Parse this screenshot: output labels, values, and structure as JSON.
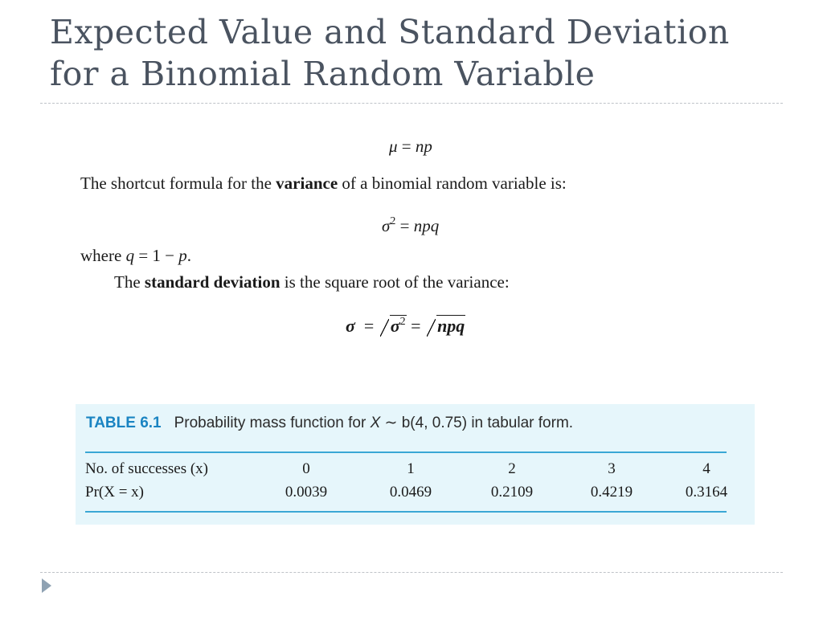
{
  "slide": {
    "title_line1": "Expected Value and Standard Deviation",
    "title_line2": "for a Binomial Random Variable"
  },
  "formulas": {
    "mean_lhs": "μ",
    "mean_eq": " = ",
    "mean_rhs": "np",
    "variance_sym": "σ",
    "variance_exp": "2",
    "variance_eq": " = ",
    "variance_rhs": "npq",
    "sd_lhs": "σ",
    "sd_eq1": "  = ",
    "sd_inner": "σ",
    "sd_inner_exp": "2",
    "sd_eq2": " = ",
    "sd_rhs": "npq"
  },
  "text": {
    "variance_intro_pre": "The shortcut formula for the ",
    "variance_intro_bold": "variance",
    "variance_intro_post": " of a binomial random variable is:",
    "where_pre": "where ",
    "where_q": "q",
    "where_mid": " = 1 − ",
    "where_p": "p",
    "where_post": ".",
    "sd_intro_pre": "The ",
    "sd_intro_bold": "standard deviation",
    "sd_intro_post": " is the square root of the variance:"
  },
  "table": {
    "label": "TABLE 6.1",
    "caption_pre": "Probability mass function for ",
    "caption_x": "X",
    "caption_post": " ∼ b(4, 0.75) in tabular form.",
    "row_header_1": "No. of successes (x)",
    "row_header_2": "Pr(X = x)",
    "x_values": [
      "0",
      "1",
      "2",
      "3",
      "4"
    ],
    "probabilities": [
      "0.0039",
      "0.0469",
      "0.2109",
      "0.4219",
      "0.3164"
    ]
  },
  "icons": {
    "nav": "triangle-right-icon"
  },
  "colors": {
    "title": "#4a5360",
    "table_background": "#e6f6fb",
    "table_accent": "#1a84c2",
    "table_rule": "#3aa7d5"
  }
}
